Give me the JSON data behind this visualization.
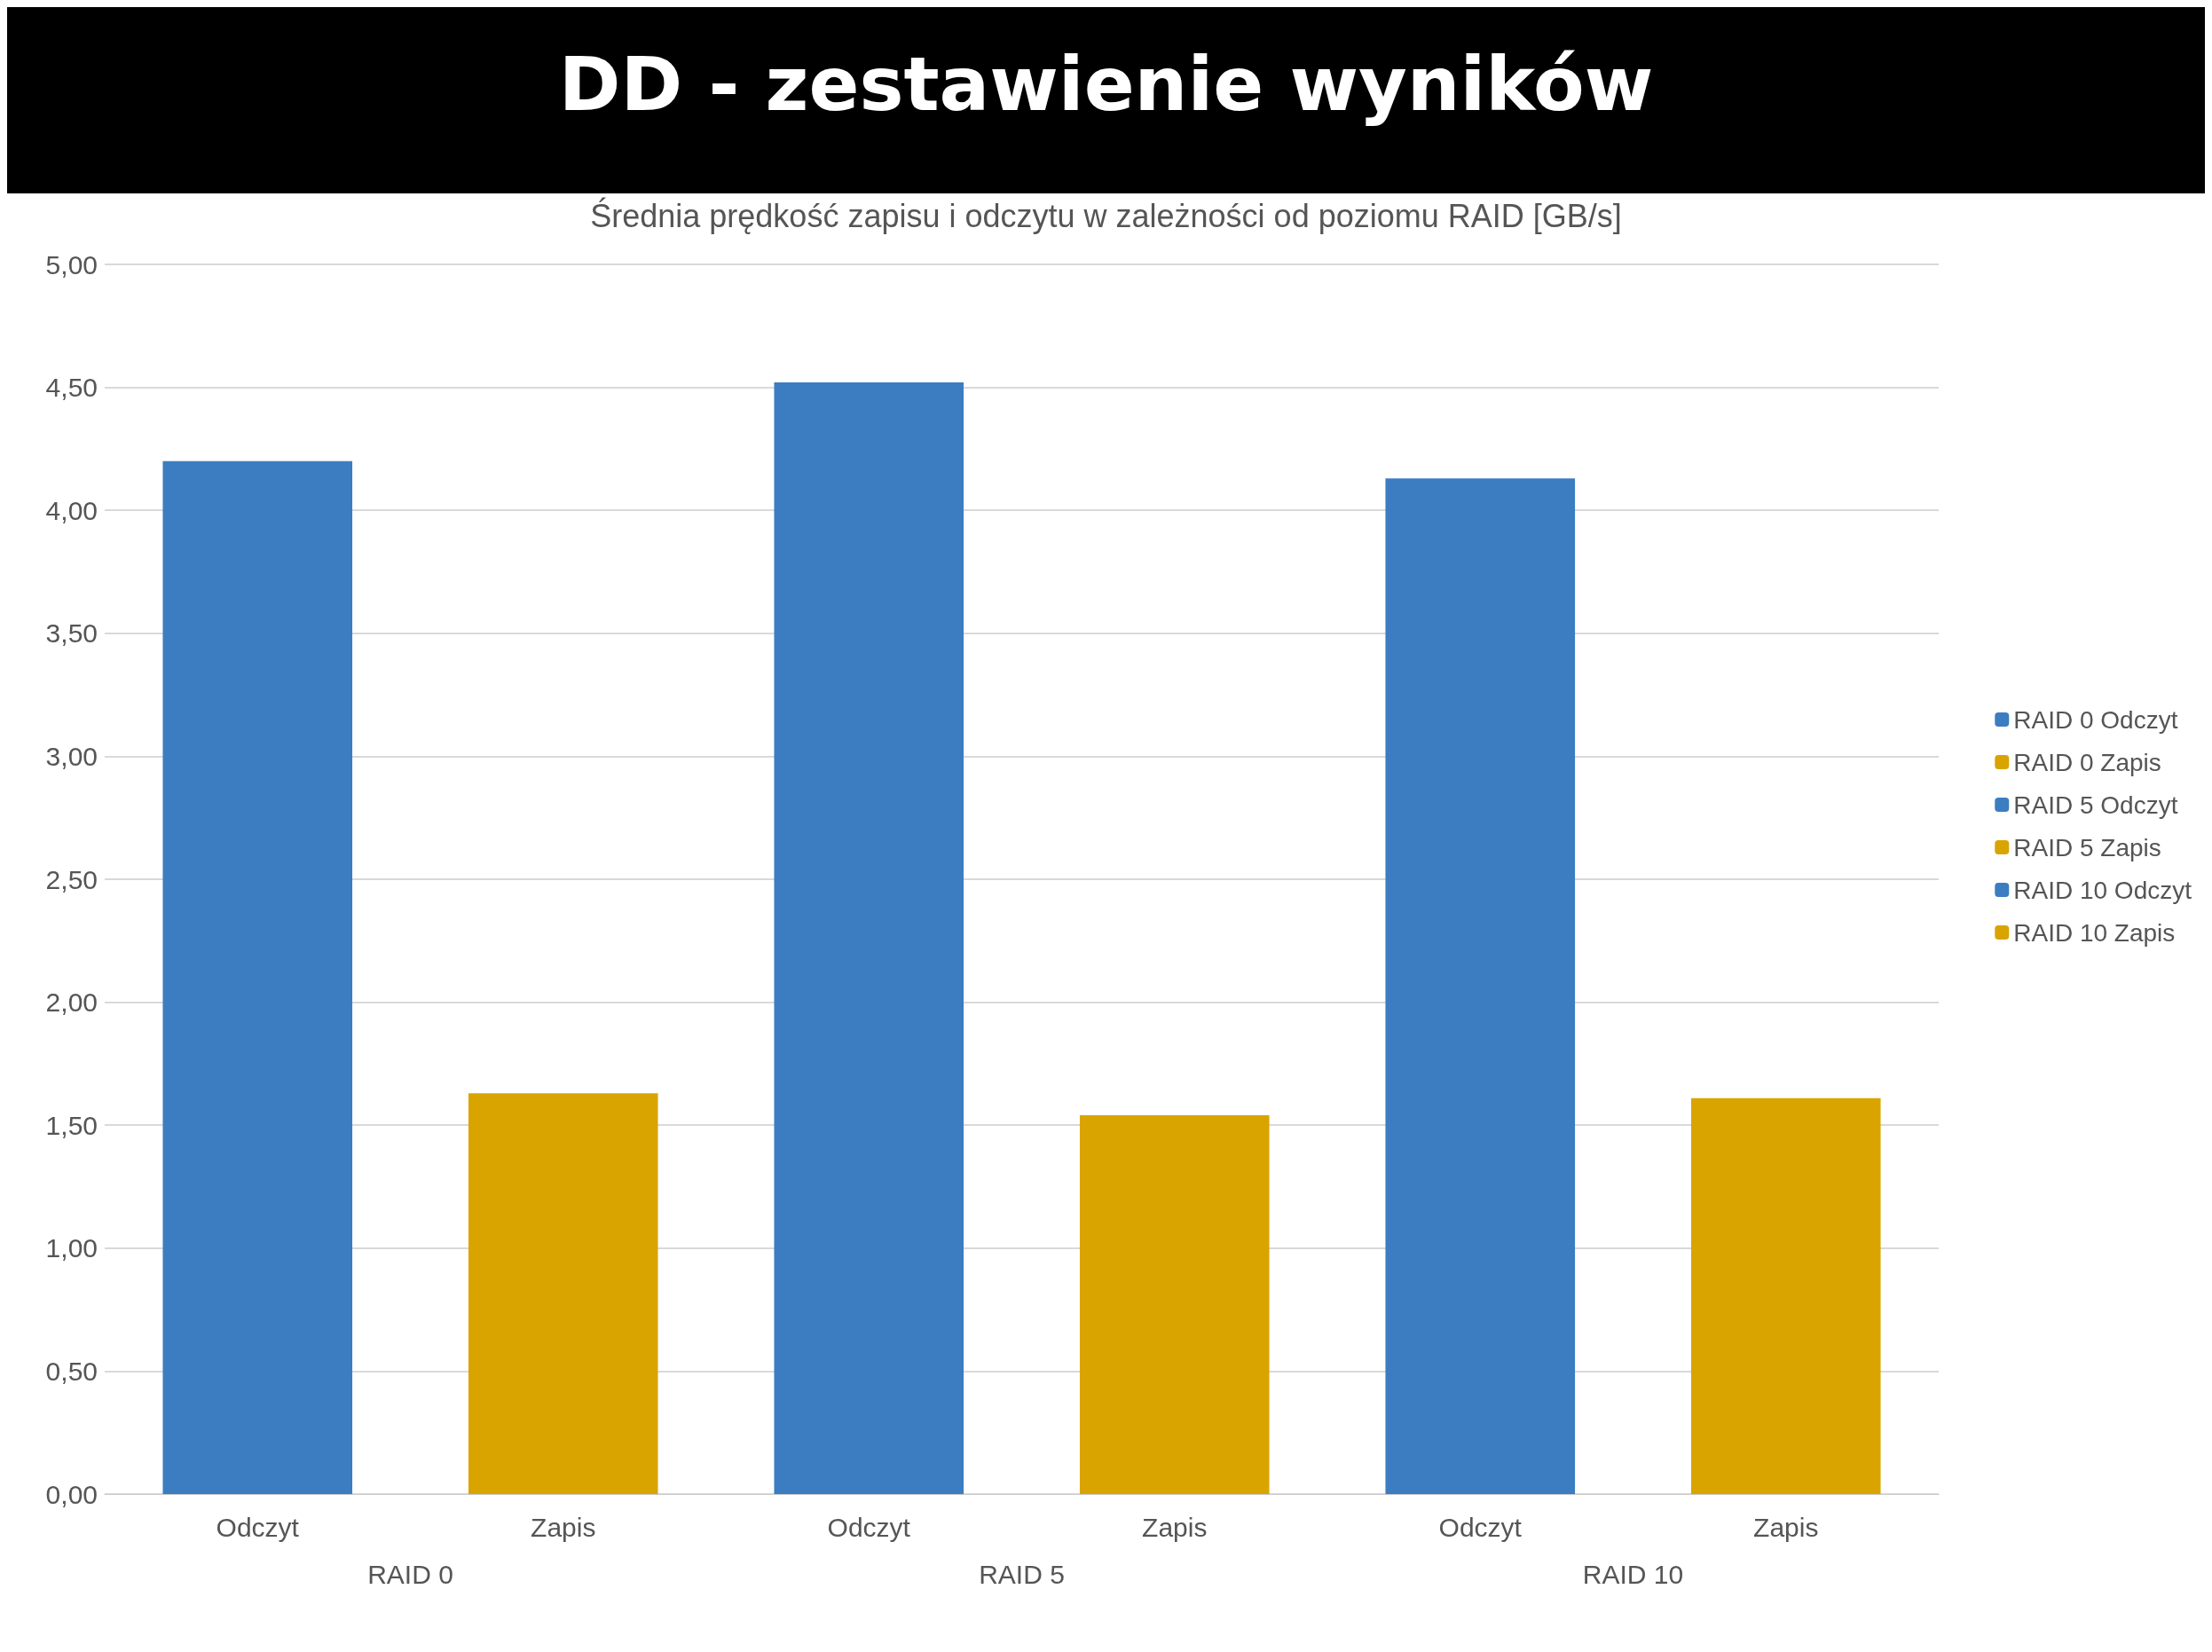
{
  "chart_data": {
    "type": "bar",
    "title": "DD - zestawienie wyników",
    "subtitle": "Średnia prędkość zapisu i odczytu w zależności od poziomu RAID [GB/s]",
    "categories": [
      "Odczyt",
      "Zapis",
      "Odczyt",
      "Zapis",
      "Odczyt",
      "Zapis"
    ],
    "annotations": [
      "RAID 0",
      "RAID 5",
      "RAID 10"
    ],
    "series": [
      {
        "name": "RAID 0 Odczyt",
        "color": "#3b7dc0",
        "values": [
          4.2,
          null,
          null,
          null,
          null,
          null
        ]
      },
      {
        "name": "RAID 0 Zapis",
        "color": "#d9a400",
        "values": [
          null,
          1.63,
          null,
          null,
          null,
          null
        ]
      },
      {
        "name": "RAID 5 Odczyt",
        "color": "#3b7dc0",
        "values": [
          null,
          null,
          4.52,
          null,
          null,
          null
        ]
      },
      {
        "name": "RAID 5 Zapis",
        "color": "#d9a400",
        "values": [
          null,
          null,
          null,
          1.54,
          null,
          null
        ]
      },
      {
        "name": "RAID 10 Odczyt",
        "color": "#3b7dc0",
        "values": [
          null,
          null,
          null,
          null,
          4.13,
          null
        ]
      },
      {
        "name": "RAID 10 Zapis",
        "color": "#d9a400",
        "values": [
          null,
          null,
          null,
          null,
          null,
          1.61
        ]
      }
    ],
    "ylim": [
      0,
      5
    ],
    "yticks": [
      {
        "value": 0,
        "label": "0,00"
      },
      {
        "value": 0.5,
        "label": "0,50"
      },
      {
        "value": 1,
        "label": "1,00"
      },
      {
        "value": 1.5,
        "label": "1,50"
      },
      {
        "value": 2,
        "label": "2,00"
      },
      {
        "value": 2.5,
        "label": "2,50"
      },
      {
        "value": 3,
        "label": "3,00"
      },
      {
        "value": 3.5,
        "label": "3,50"
      },
      {
        "value": 4,
        "label": "4,00"
      },
      {
        "value": 4.5,
        "label": "4,50"
      },
      {
        "value": 5,
        "label": "5,00"
      }
    ],
    "grid": "y",
    "legend": "right"
  }
}
